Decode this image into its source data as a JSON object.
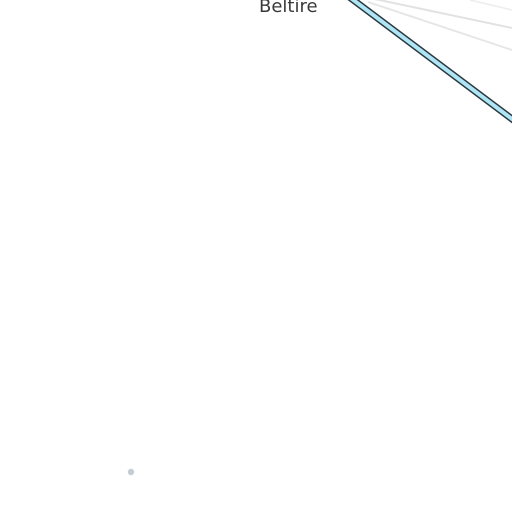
{
  "map": {
    "place_label": "Beltire",
    "colors": {
      "background": "#ffffff",
      "major_road_fill": "#aee6f5",
      "major_road_casing": "#2b3a40",
      "minor_road": "#e2e2e2",
      "point_marker": "#c5ccd6",
      "label_text": "#3a3a3a"
    },
    "features": [
      {
        "type": "major-road",
        "name": ""
      },
      {
        "type": "minor-road",
        "name": ""
      },
      {
        "type": "minor-road",
        "name": ""
      },
      {
        "type": "point-marker",
        "name": ""
      }
    ]
  }
}
